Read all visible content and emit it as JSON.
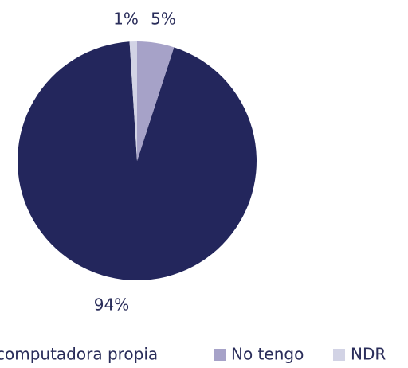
{
  "chart_data": {
    "type": "pie",
    "categories": [
      "computadora propia",
      "No tengo",
      "NDR"
    ],
    "values": [
      94,
      5,
      1
    ],
    "value_labels": [
      "94%",
      "5%",
      "1%"
    ],
    "colors": [
      "#23265c",
      "#a6a2c8",
      "#d2d3e5"
    ],
    "legend": "bottom"
  }
}
